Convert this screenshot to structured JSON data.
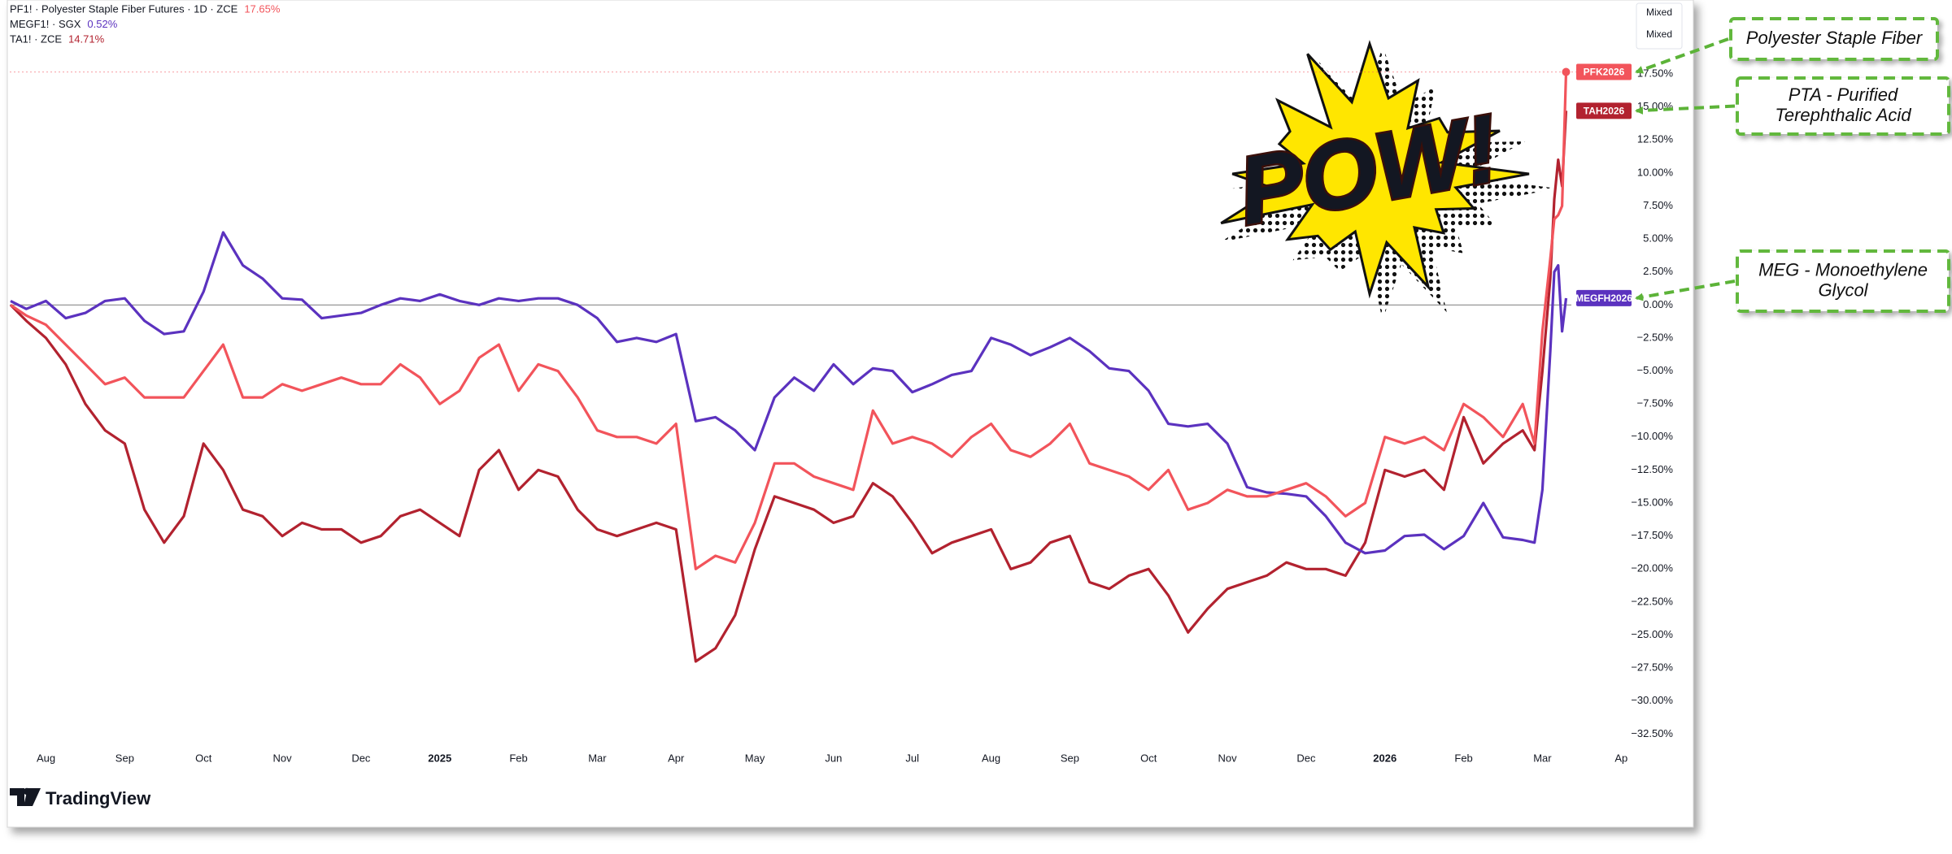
{
  "chart_data": {
    "type": "line",
    "x": [
      -0.45,
      -0.25,
      0,
      0.25,
      0.5,
      0.75,
      1,
      1.25,
      1.5,
      1.75,
      2,
      2.25,
      2.5,
      2.75,
      3,
      3.25,
      3.5,
      3.75,
      4,
      4.25,
      4.5,
      4.75,
      5,
      5.25,
      5.5,
      5.75,
      6,
      6.25,
      6.5,
      6.75,
      7,
      7.25,
      7.5,
      7.75,
      8,
      8.25,
      8.5,
      8.75,
      9,
      9.25,
      9.5,
      9.75,
      10,
      10.25,
      10.5,
      10.75,
      11,
      11.25,
      11.5,
      11.75,
      12,
      12.25,
      12.5,
      12.75,
      13,
      13.25,
      13.5,
      13.75,
      14,
      14.25,
      14.5,
      14.75,
      15,
      15.25,
      15.5,
      15.75,
      16,
      16.25,
      16.5,
      16.75,
      17,
      17.25,
      17.5,
      17.75,
      18,
      18.25,
      18.5,
      18.75,
      18.9,
      19,
      19.1,
      19.15,
      19.2,
      19.25,
      19.3
    ],
    "series": [
      {
        "name": "PF1! · Polyester Staple Fiber Futures · 1D · ZCE",
        "last_value_label": "17.65%",
        "badge": "PFK2026",
        "color": "#f2545b",
        "values": [
          0,
          -0.8,
          -1.5,
          -3,
          -4.5,
          -6,
          -5.5,
          -7,
          -7,
          -7,
          -5,
          -3,
          -7,
          -7,
          -6,
          -6.5,
          -6,
          -5.5,
          -6,
          -6,
          -4.5,
          -5.5,
          -7.5,
          -6.5,
          -4,
          -3,
          -6.5,
          -4.5,
          -5,
          -7,
          -9.5,
          -10,
          -10,
          -10.5,
          -9,
          -20,
          -19,
          -19.5,
          -16.5,
          -12,
          -12,
          -13,
          -13.5,
          -14,
          -8,
          -10.5,
          -10,
          -10.5,
          -11.5,
          -10,
          -9,
          -11,
          -11.5,
          -10.5,
          -9,
          -12,
          -12.5,
          -13,
          -14,
          -12.5,
          -15.5,
          -15,
          -14,
          -14.5,
          -14.5,
          -14,
          -13.5,
          -14.5,
          -16,
          -15,
          -10,
          -10.5,
          -10,
          -11,
          -7.5,
          -8.5,
          -10,
          -7.5,
          -10.5,
          -2,
          3.5,
          6.5,
          6.8,
          7.5,
          17.65
        ]
      },
      {
        "name": "MEGF1! · SGX",
        "last_value_label": "0.52%",
        "badge": "MEGFH2026",
        "color": "#5b32bf",
        "values": [
          0.3,
          -0.3,
          0.3,
          -1,
          -0.6,
          0.3,
          0.5,
          -1.2,
          -2.2,
          -2,
          1,
          5.5,
          3,
          2,
          0.5,
          0.4,
          -1,
          -0.8,
          -0.6,
          0,
          0.5,
          0.3,
          0.8,
          0.3,
          0,
          0.5,
          0.3,
          0.5,
          0.5,
          0,
          -1,
          -2.8,
          -2.5,
          -2.8,
          -2.2,
          -8.8,
          -8.5,
          -9.5,
          -11,
          -7,
          -5.5,
          -6.5,
          -4.5,
          -6,
          -4.8,
          -5,
          -6.6,
          -6,
          -5.3,
          -5,
          -2.5,
          -3,
          -3.8,
          -3.2,
          -2.5,
          -3.5,
          -4.8,
          -5,
          -6.5,
          -9,
          -9.2,
          -9,
          -10.5,
          -13.8,
          -14.2,
          -14.3,
          -14.5,
          -16,
          -18,
          -18.8,
          -18.6,
          -17.5,
          -17.4,
          -18.5,
          -17.5,
          -15,
          -17.6,
          -17.8,
          -18,
          -14,
          -3.5,
          2.5,
          3,
          -2,
          0.52
        ]
      },
      {
        "name": "TA1! · ZCE",
        "last_value_label": "14.71%",
        "badge": "TAH2026",
        "color": "#b2222f",
        "values": [
          0,
          -1.2,
          -2.5,
          -4.5,
          -7.5,
          -9.5,
          -10.5,
          -15.5,
          -18,
          -16,
          -10.5,
          -12.5,
          -15.5,
          -16,
          -17.5,
          -16.5,
          -17,
          -17,
          -18,
          -17.5,
          -16,
          -15.5,
          -16.5,
          -17.5,
          -12.5,
          -11,
          -14,
          -12.5,
          -13,
          -15.5,
          -17,
          -17.5,
          -17,
          -16.5,
          -17,
          -27,
          -26,
          -23.5,
          -18.5,
          -14.5,
          -15,
          -15.5,
          -16.5,
          -16,
          -13.5,
          -14.5,
          -16.5,
          -18.8,
          -18,
          -17.5,
          -17,
          -20,
          -19.5,
          -18,
          -17.5,
          -21,
          -21.5,
          -20.5,
          -20,
          -22,
          -24.8,
          -23,
          -21.5,
          -21,
          -20.5,
          -19.5,
          -20,
          -20,
          -20.5,
          -18,
          -12.5,
          -13,
          -12.5,
          -14,
          -8.5,
          -12,
          -10.5,
          -9.5,
          -11,
          -5,
          2,
          8,
          11,
          9,
          14.71
        ]
      }
    ],
    "xlim": [
      -0.46,
      20.4
    ],
    "xticks": [
      {
        "value": 0,
        "label": "Aug"
      },
      {
        "value": 1,
        "label": "Sep"
      },
      {
        "value": 2,
        "label": "Oct"
      },
      {
        "value": 3,
        "label": "Nov"
      },
      {
        "value": 4,
        "label": "Dec"
      },
      {
        "value": 5,
        "label": "2025"
      },
      {
        "value": 6,
        "label": "Feb"
      },
      {
        "value": 7,
        "label": "Mar"
      },
      {
        "value": 8,
        "label": "Apr"
      },
      {
        "value": 9,
        "label": "May"
      },
      {
        "value": 10,
        "label": "Jun"
      },
      {
        "value": 11,
        "label": "Jul"
      },
      {
        "value": 12,
        "label": "Aug"
      },
      {
        "value": 13,
        "label": "Sep"
      },
      {
        "value": 14,
        "label": "Oct"
      },
      {
        "value": 15,
        "label": "Nov"
      },
      {
        "value": 16,
        "label": "Dec"
      },
      {
        "value": 17,
        "label": "2026"
      },
      {
        "value": 18,
        "label": "Feb"
      },
      {
        "value": 19,
        "label": "Mar"
      },
      {
        "value": 20,
        "label": "Ap"
      }
    ],
    "ylim": [
      -33.4,
      23.1
    ],
    "yticks": [
      {
        "value": 17.5,
        "label": "17.50%"
      },
      {
        "value": 15,
        "label": "15.00%"
      },
      {
        "value": 12.5,
        "label": "12.50%"
      },
      {
        "value": 10,
        "label": "10.00%"
      },
      {
        "value": 7.5,
        "label": "7.50%"
      },
      {
        "value": 5,
        "label": "5.00%"
      },
      {
        "value": 2.5,
        "label": "2.50%"
      },
      {
        "value": 0,
        "label": "0.00%"
      },
      {
        "value": -2.5,
        "label": "−2.50%"
      },
      {
        "value": -5,
        "label": "−5.00%"
      },
      {
        "value": -7.5,
        "label": "−7.50%"
      },
      {
        "value": -10,
        "label": "−10.00%"
      },
      {
        "value": -12.5,
        "label": "−12.50%"
      },
      {
        "value": -15,
        "label": "−15.00%"
      },
      {
        "value": -17.5,
        "label": "−17.50%"
      },
      {
        "value": -20,
        "label": "−20.00%"
      },
      {
        "value": -22.5,
        "label": "−22.50%"
      },
      {
        "value": -25,
        "label": "−25.00%"
      },
      {
        "value": -27.5,
        "label": "−27.50%"
      },
      {
        "value": -30,
        "label": "−30.00%"
      },
      {
        "value": -32.5,
        "label": "−32.50%"
      }
    ],
    "zero_line": true,
    "scale_modes": [
      "Mixed",
      "Mixed"
    ],
    "sticker": "POW!",
    "branding": "TradingView",
    "annotations": [
      {
        "series": 0,
        "lines": [
          "Polyester Staple Fiber"
        ]
      },
      {
        "series": 2,
        "lines": [
          "PTA - Purified",
          "Terephthalic Acid"
        ]
      },
      {
        "series": 1,
        "lines": [
          "MEG - Monoethylene",
          "Glycol"
        ]
      }
    ]
  }
}
